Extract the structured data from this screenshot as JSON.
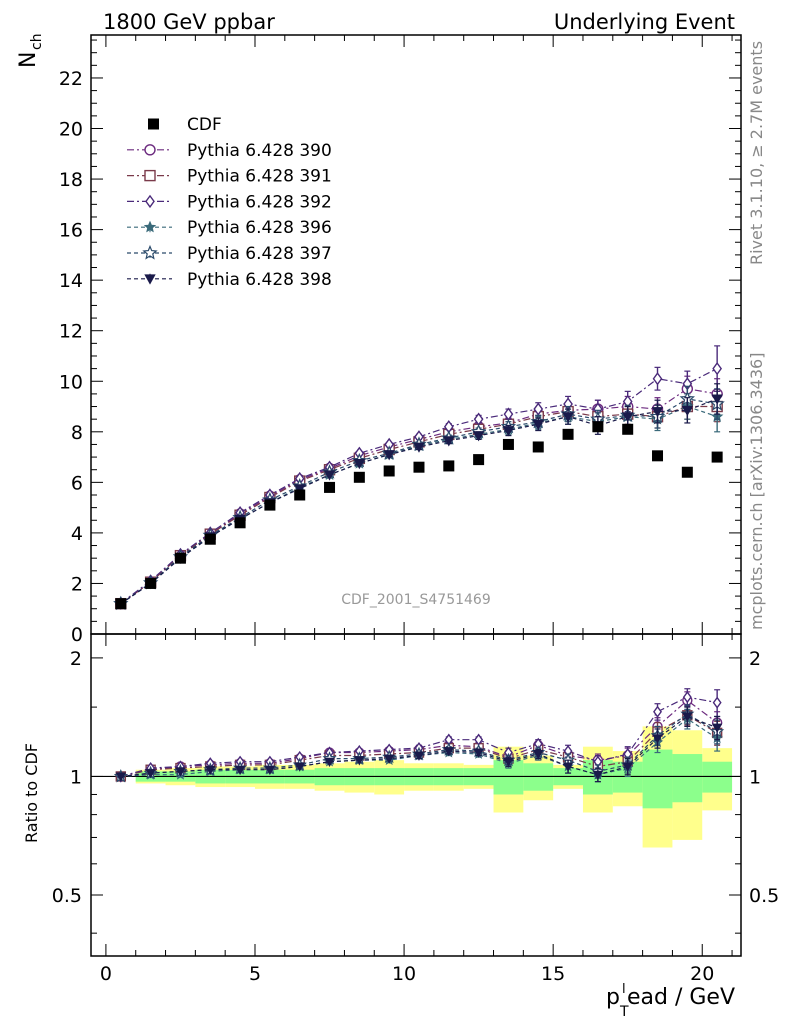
{
  "header": {
    "left": "1800 GeV ppbar",
    "right": "Underlying Event",
    "side_top": "Rivet 3.1.10, ≥ 2.7M events",
    "side_bottom": "mcplots.cern.ch [arXiv:1306.3436]",
    "watermark": "CDF_2001_S4751469"
  },
  "chart_data": [
    {
      "type": "line",
      "panel": "main",
      "ylabel_main": "N",
      "ylabel_sub": "ch",
      "xlim": [
        -0.5,
        21.3
      ],
      "ylim": [
        0,
        23.7
      ],
      "yticks": [
        0,
        2,
        4,
        6,
        8,
        10,
        12,
        14,
        16,
        18,
        20,
        22
      ],
      "ytick_labels": [
        "0",
        "2",
        "4",
        "6",
        "8",
        "10",
        "12",
        "14",
        "16",
        "18",
        "20",
        "22"
      ],
      "x": [
        0.5,
        1.5,
        2.5,
        3.5,
        4.5,
        5.5,
        6.5,
        7.5,
        8.5,
        9.5,
        10.5,
        11.5,
        12.5,
        13.5,
        14.5,
        15.5,
        16.5,
        17.5,
        18.5,
        19.5,
        20.5
      ],
      "data": {
        "name": "CDF",
        "values": [
          1.2,
          2.0,
          3.0,
          3.75,
          4.4,
          5.1,
          5.5,
          5.8,
          6.2,
          6.45,
          6.6,
          6.65,
          6.9,
          7.5,
          7.4,
          7.9,
          8.2,
          8.1,
          7.05,
          6.4,
          7.0
        ],
        "color": "#000000"
      },
      "series": [
        {
          "name": "Pythia 6.428 390",
          "color": "#6c2a7f",
          "marker": "circle-open",
          "dash": "7,3,2,3",
          "values": [
            1.2,
            2.05,
            3.1,
            3.95,
            4.75,
            5.45,
            6.1,
            6.55,
            7.05,
            7.4,
            7.7,
            8.0,
            8.2,
            8.35,
            8.7,
            8.85,
            8.9,
            9.0,
            8.9,
            9.7,
            9.5
          ],
          "errors": [
            0.05,
            0.05,
            0.05,
            0.05,
            0.05,
            0.05,
            0.05,
            0.05,
            0.05,
            0.08,
            0.1,
            0.12,
            0.15,
            0.2,
            0.25,
            0.3,
            0.35,
            0.4,
            0.45,
            0.5,
            0.6
          ]
        },
        {
          "name": "Pythia 6.428 391",
          "color": "#7a3a4a",
          "marker": "square-open",
          "dash": "7,3,2,3",
          "values": [
            1.2,
            2.05,
            3.1,
            3.95,
            4.7,
            5.4,
            6.05,
            6.5,
            6.95,
            7.3,
            7.6,
            7.9,
            8.1,
            8.3,
            8.6,
            8.8,
            8.6,
            8.7,
            8.6,
            9.0,
            9.0
          ],
          "errors": [
            0.05,
            0.05,
            0.05,
            0.05,
            0.05,
            0.05,
            0.05,
            0.05,
            0.05,
            0.08,
            0.1,
            0.12,
            0.15,
            0.2,
            0.25,
            0.3,
            0.35,
            0.4,
            0.45,
            0.5,
            0.6
          ]
        },
        {
          "name": "Pythia 6.428 392",
          "color": "#4a2a7a",
          "marker": "diamond-open",
          "dash": "7,3,2,3",
          "values": [
            1.22,
            2.1,
            3.15,
            4.0,
            4.8,
            5.5,
            6.15,
            6.6,
            7.15,
            7.5,
            7.8,
            8.2,
            8.5,
            8.7,
            8.9,
            9.1,
            8.9,
            9.2,
            10.1,
            9.9,
            10.5
          ],
          "errors": [
            0.05,
            0.05,
            0.05,
            0.05,
            0.05,
            0.05,
            0.05,
            0.05,
            0.05,
            0.08,
            0.1,
            0.12,
            0.15,
            0.2,
            0.25,
            0.3,
            0.35,
            0.4,
            0.45,
            0.5,
            0.9
          ]
        },
        {
          "name": "Pythia 6.428 396",
          "color": "#3a6a7a",
          "marker": "star-filled",
          "dash": "4,3",
          "values": [
            1.2,
            2.0,
            3.0,
            3.85,
            4.55,
            5.2,
            5.8,
            6.3,
            6.75,
            7.1,
            7.45,
            7.7,
            7.9,
            8.1,
            8.35,
            8.6,
            8.4,
            8.6,
            8.5,
            9.0,
            8.6
          ],
          "errors": [
            0.05,
            0.05,
            0.05,
            0.05,
            0.05,
            0.05,
            0.05,
            0.05,
            0.05,
            0.08,
            0.1,
            0.12,
            0.15,
            0.2,
            0.25,
            0.3,
            0.35,
            0.4,
            0.45,
            0.5,
            0.6
          ]
        },
        {
          "name": "Pythia 6.428 397",
          "color": "#2a4a6a",
          "marker": "star-open",
          "dash": "4,3",
          "values": [
            1.2,
            2.02,
            3.05,
            3.9,
            4.6,
            5.3,
            5.85,
            6.4,
            6.85,
            7.15,
            7.5,
            7.75,
            8.0,
            8.2,
            8.4,
            8.7,
            8.5,
            8.65,
            8.6,
            9.3,
            9.1
          ],
          "errors": [
            0.05,
            0.05,
            0.05,
            0.05,
            0.05,
            0.05,
            0.05,
            0.05,
            0.05,
            0.08,
            0.1,
            0.12,
            0.15,
            0.2,
            0.25,
            0.3,
            0.35,
            0.4,
            0.45,
            0.5,
            0.6
          ]
        },
        {
          "name": "Pythia 6.428 398",
          "color": "#1a1a4a",
          "marker": "triangle-down-filled",
          "dash": "4,3",
          "values": [
            1.2,
            2.0,
            3.0,
            3.85,
            4.55,
            5.2,
            5.75,
            6.3,
            6.75,
            7.1,
            7.4,
            7.65,
            7.85,
            8.05,
            8.3,
            8.6,
            8.25,
            8.6,
            8.8,
            8.85,
            9.3
          ],
          "errors": [
            0.05,
            0.05,
            0.05,
            0.05,
            0.05,
            0.05,
            0.05,
            0.05,
            0.05,
            0.08,
            0.1,
            0.12,
            0.15,
            0.2,
            0.25,
            0.3,
            0.35,
            0.4,
            0.45,
            0.5,
            0.6
          ]
        }
      ],
      "legend_position": "top-left"
    },
    {
      "type": "line",
      "panel": "ratio",
      "ylabel": "Ratio to CDF",
      "xlabel_main": "p",
      "xlabel_sub": "T",
      "xlabel_sup": "l",
      "xlabel_rest": "ead / GeV",
      "xlim": [
        -0.5,
        21.3
      ],
      "ylim": [
        0.35,
        2.3
      ],
      "scale": "log",
      "yticks": [
        0.5,
        1,
        2
      ],
      "ytick_labels": [
        "0.5",
        "1",
        "2"
      ],
      "xticks": [
        0,
        5,
        10,
        15,
        20
      ],
      "xtick_labels": [
        "0",
        "5",
        "10",
        "15",
        "20"
      ],
      "x": [
        0.5,
        1.5,
        2.5,
        3.5,
        4.5,
        5.5,
        6.5,
        7.5,
        8.5,
        9.5,
        10.5,
        11.5,
        12.5,
        13.5,
        14.5,
        15.5,
        16.5,
        17.5,
        18.5,
        19.5,
        20.5
      ],
      "band_yellow": {
        "lo": [
          1.0,
          0.96,
          0.95,
          0.94,
          0.94,
          0.93,
          0.93,
          0.92,
          0.91,
          0.9,
          0.92,
          0.92,
          0.93,
          0.81,
          0.87,
          0.93,
          0.81,
          0.84,
          0.66,
          0.69,
          0.82
        ],
        "hi": [
          1.0,
          1.04,
          1.05,
          1.06,
          1.06,
          1.07,
          1.07,
          1.08,
          1.09,
          1.1,
          1.08,
          1.08,
          1.07,
          1.19,
          1.13,
          1.07,
          1.19,
          1.16,
          1.34,
          1.31,
          1.18
        ]
      },
      "band_green": {
        "lo": [
          1.0,
          0.97,
          0.97,
          0.96,
          0.96,
          0.96,
          0.96,
          0.95,
          0.95,
          0.95,
          0.95,
          0.95,
          0.95,
          0.9,
          0.92,
          0.95,
          0.9,
          0.91,
          0.83,
          0.86,
          0.91
        ],
        "hi": [
          1.0,
          1.03,
          1.03,
          1.04,
          1.04,
          1.04,
          1.04,
          1.05,
          1.05,
          1.05,
          1.05,
          1.05,
          1.05,
          1.1,
          1.08,
          1.05,
          1.1,
          1.09,
          1.17,
          1.14,
          1.09
        ]
      },
      "series": [
        {
          "name": "Pythia 6.428 390",
          "values": [
            1.0,
            1.04,
            1.06,
            1.07,
            1.08,
            1.08,
            1.11,
            1.15,
            1.15,
            1.16,
            1.17,
            1.2,
            1.19,
            1.12,
            1.2,
            1.13,
            1.1,
            1.13,
            1.34,
            1.56,
            1.37
          ],
          "errors": [
            0,
            0.01,
            0.01,
            0.01,
            0.01,
            0.01,
            0.01,
            0.01,
            0.01,
            0.01,
            0.02,
            0.02,
            0.02,
            0.03,
            0.03,
            0.04,
            0.04,
            0.05,
            0.07,
            0.08,
            0.09
          ]
        },
        {
          "name": "Pythia 6.428 391",
          "values": [
            1.0,
            1.04,
            1.05,
            1.06,
            1.07,
            1.07,
            1.1,
            1.13,
            1.13,
            1.14,
            1.15,
            1.18,
            1.18,
            1.11,
            1.17,
            1.12,
            1.06,
            1.09,
            1.3,
            1.43,
            1.29
          ],
          "errors": [
            0,
            0.01,
            0.01,
            0.01,
            0.01,
            0.01,
            0.01,
            0.01,
            0.01,
            0.01,
            0.02,
            0.02,
            0.02,
            0.03,
            0.03,
            0.04,
            0.04,
            0.05,
            0.07,
            0.08,
            0.09
          ]
        },
        {
          "name": "Pythia 6.428 392",
          "values": [
            1.0,
            1.05,
            1.06,
            1.08,
            1.09,
            1.09,
            1.12,
            1.15,
            1.16,
            1.17,
            1.18,
            1.24,
            1.24,
            1.15,
            1.21,
            1.16,
            1.09,
            1.14,
            1.46,
            1.59,
            1.54
          ],
          "errors": [
            0,
            0.01,
            0.01,
            0.01,
            0.01,
            0.01,
            0.01,
            0.01,
            0.01,
            0.01,
            0.02,
            0.02,
            0.02,
            0.03,
            0.03,
            0.04,
            0.04,
            0.05,
            0.07,
            0.08,
            0.12
          ]
        },
        {
          "name": "Pythia 6.428 396",
          "values": [
            1.0,
            1.01,
            1.01,
            1.03,
            1.04,
            1.04,
            1.06,
            1.09,
            1.1,
            1.1,
            1.13,
            1.15,
            1.14,
            1.08,
            1.13,
            1.06,
            1.01,
            1.05,
            1.22,
            1.4,
            1.25
          ],
          "errors": [
            0,
            0.01,
            0.01,
            0.01,
            0.01,
            0.01,
            0.01,
            0.01,
            0.01,
            0.01,
            0.02,
            0.02,
            0.02,
            0.03,
            0.03,
            0.04,
            0.04,
            0.05,
            0.07,
            0.08,
            0.09
          ]
        },
        {
          "name": "Pythia 6.428 397",
          "values": [
            1.0,
            1.02,
            1.03,
            1.04,
            1.05,
            1.05,
            1.07,
            1.11,
            1.11,
            1.12,
            1.14,
            1.17,
            1.16,
            1.1,
            1.15,
            1.1,
            1.03,
            1.07,
            1.27,
            1.44,
            1.3
          ],
          "errors": [
            0,
            0.01,
            0.01,
            0.01,
            0.01,
            0.01,
            0.01,
            0.01,
            0.01,
            0.01,
            0.02,
            0.02,
            0.02,
            0.03,
            0.03,
            0.04,
            0.04,
            0.05,
            0.07,
            0.08,
            0.09
          ]
        },
        {
          "name": "Pythia 6.428 398",
          "values": [
            1.0,
            1.02,
            1.03,
            1.04,
            1.04,
            1.04,
            1.06,
            1.09,
            1.1,
            1.11,
            1.13,
            1.16,
            1.15,
            1.09,
            1.14,
            1.06,
            1.01,
            1.06,
            1.25,
            1.42,
            1.33
          ],
          "errors": [
            0,
            0.01,
            0.01,
            0.01,
            0.01,
            0.01,
            0.01,
            0.01,
            0.01,
            0.01,
            0.02,
            0.02,
            0.02,
            0.03,
            0.03,
            0.04,
            0.04,
            0.05,
            0.07,
            0.08,
            0.09
          ]
        }
      ]
    }
  ]
}
